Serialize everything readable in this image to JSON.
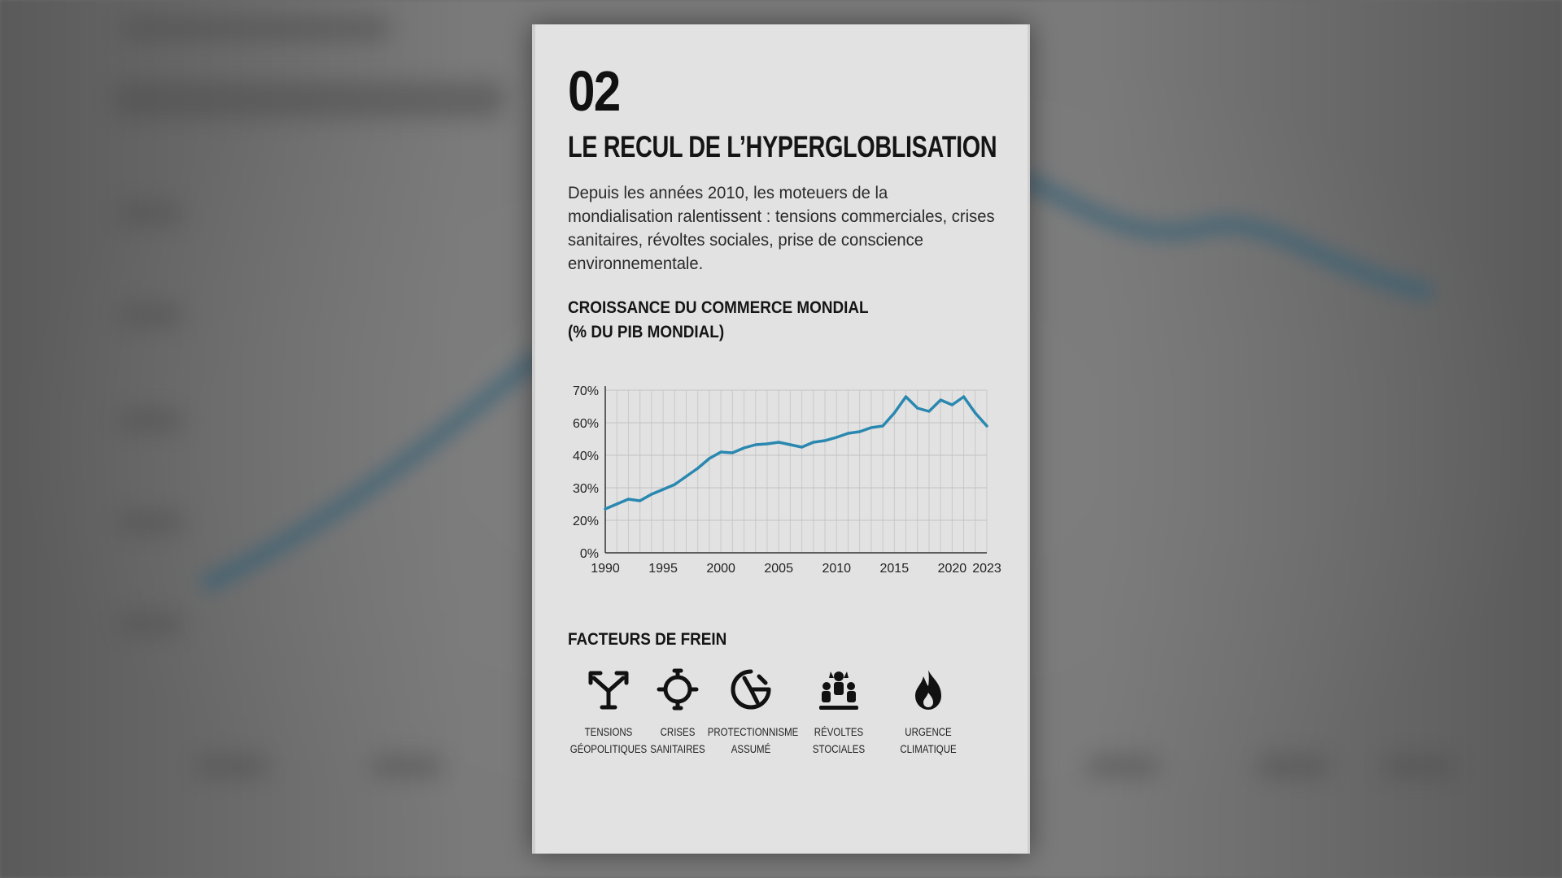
{
  "page": {
    "number": "02",
    "title": "LE RECUL DE L’HYPERGLOBLISATION",
    "intro": "Depuis les années 2010, les moteuers de la mondialisation ralentissent : tensions commerciales, crises sanitaires, révoltes sociales, prise de conscience environnementale."
  },
  "chart_title_line1": "CROISSANCE DU COMMERCE MONDIAL",
  "chart_title_line2": "(% DU PIB MONDIAL)",
  "chart_data": {
    "type": "line",
    "title": "CROISSANCE DU COMMERCE MONDIAL (% DU PIB MONDIAL)",
    "xlabel": "",
    "ylabel": "",
    "y_tick_labels": [
      "0%",
      "20%",
      "30%",
      "40%",
      "60%",
      "70%"
    ],
    "x_tick_labels": [
      "1990",
      "1995",
      "2000",
      "2005",
      "2010",
      "2015",
      "2020",
      "2023"
    ],
    "x_ticks": [
      1990,
      1995,
      2000,
      2005,
      2010,
      2015,
      2020,
      2023
    ],
    "xlim": [
      1990,
      2023
    ],
    "grid": true,
    "color": "#2a88b0",
    "series": [
      {
        "name": "",
        "x": [
          1990,
          1991,
          1992,
          1993,
          1994,
          1995,
          1996,
          1997,
          1998,
          1999,
          2000,
          2001,
          2002,
          2003,
          2004,
          2005,
          2006,
          2007,
          2008,
          2009,
          2010,
          2011,
          2012,
          2013,
          2014,
          2015,
          2016,
          2017,
          2018,
          2019,
          2020,
          2021,
          2022,
          2023
        ],
        "y": [
          23.5,
          25,
          26.5,
          26,
          28,
          29.5,
          31,
          33.5,
          36,
          39,
          42,
          41.5,
          44.5,
          46.5,
          47,
          48,
          46.5,
          45,
          48,
          49,
          51,
          53.5,
          54.5,
          57,
          58,
          63,
          68,
          64.5,
          63.5,
          67,
          65.5,
          68,
          63,
          58
        ]
      }
    ]
  },
  "factors": {
    "title": "FACTEURS DE FREIN",
    "items": [
      {
        "line1": "TENSIONS",
        "line2": "GÉOPOLITIQUES",
        "icon": "diverging-arrows-icon"
      },
      {
        "line1": "CRISES",
        "line2": "SANITAIRES",
        "icon": "virus-icon"
      },
      {
        "line1": "PROTECTIONNISME",
        "line2": "ASSUMÉ",
        "icon": "shield-icon"
      },
      {
        "line1": "RÉVOLTES",
        "line2": "STOCIALES",
        "icon": "protest-icon"
      },
      {
        "line1": "URGENCE",
        "line2": "CLIMATIQUE",
        "icon": "flame-icon"
      }
    ]
  }
}
